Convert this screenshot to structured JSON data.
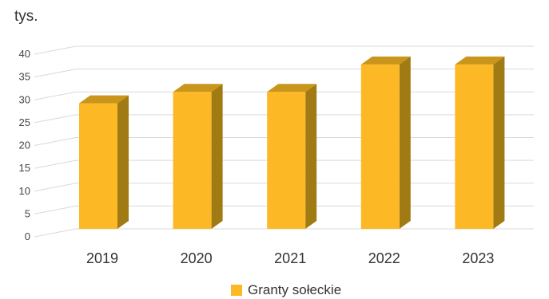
{
  "chart_data": {
    "type": "bar",
    "unit_label": "tys.",
    "categories": [
      "2019",
      "2020",
      "2021",
      "2022",
      "2023"
    ],
    "series": [
      {
        "name": "Granty sołeckie",
        "values": [
          27.5,
          30.0,
          30.0,
          36.0,
          36.0
        ]
      }
    ],
    "y_ticks": [
      "0",
      "5",
      "10",
      "15",
      "20",
      "25",
      "30",
      "35",
      "40"
    ],
    "ylim": [
      0,
      40
    ],
    "grid": true,
    "legend_position": "bottom",
    "colors": {
      "bar_front": "#FDB825",
      "bar_side": "#A07A12",
      "bar_top": "#C9951A",
      "grid": "#d9d9d9"
    }
  }
}
